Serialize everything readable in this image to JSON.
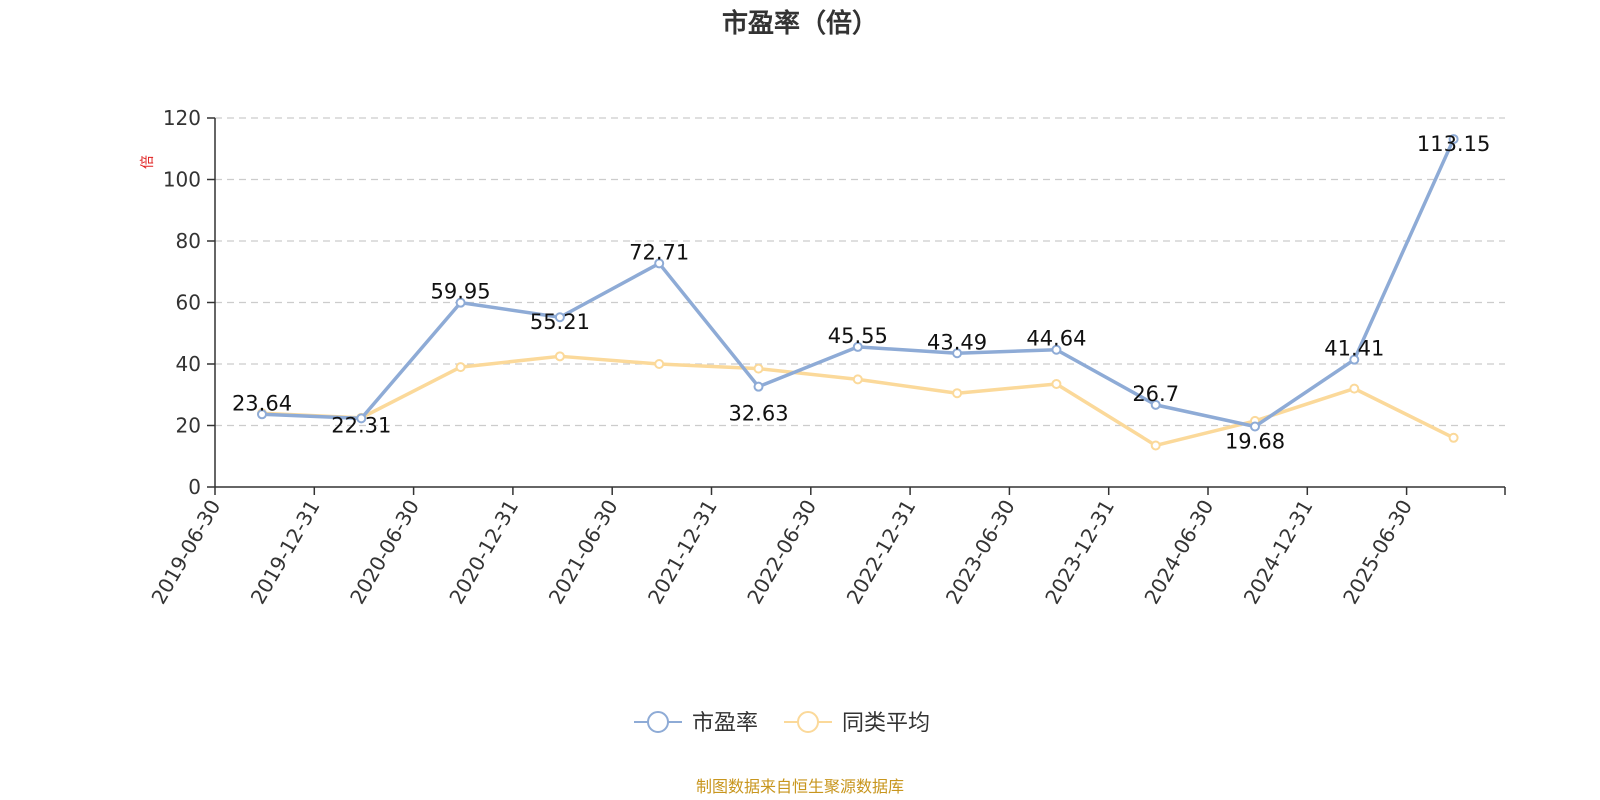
{
  "chart_data": {
    "type": "line",
    "title": "市盈率（倍）",
    "ylabel": "倍",
    "ylim": [
      0,
      120
    ],
    "yticks": [
      0,
      20,
      40,
      60,
      80,
      100,
      120
    ],
    "grid": true,
    "legend_position": "bottom-center",
    "categories": [
      "2019-06-30",
      "2019-12-31",
      "2020-06-30",
      "2020-12-31",
      "2021-06-30",
      "2021-12-31",
      "2022-06-30",
      "2022-12-31",
      "2023-06-30",
      "2023-12-31",
      "2024-06-30",
      "2024-12-31",
      "2025-06-30"
    ],
    "series": [
      {
        "name": "市盈率",
        "color": "#8eabd6",
        "values": [
          23.64,
          22.31,
          59.95,
          55.21,
          72.71,
          32.63,
          45.55,
          43.49,
          44.64,
          26.7,
          19.68,
          41.41,
          113.15
        ],
        "labels": [
          "23.64",
          "22.31",
          "59.95",
          "55.21",
          "72.71",
          "32.63",
          "45.55",
          "43.49",
          "44.64",
          "26.7",
          "19.68",
          "41.41",
          "113.15"
        ]
      },
      {
        "name": "同类平均",
        "color": "#fbd99a",
        "values": [
          24.0,
          22.5,
          39.0,
          42.5,
          40.0,
          38.5,
          35.0,
          30.5,
          33.5,
          13.5,
          21.5,
          32.0,
          16.0
        ]
      }
    ]
  },
  "source": "制图数据来自恒生聚源数据库"
}
